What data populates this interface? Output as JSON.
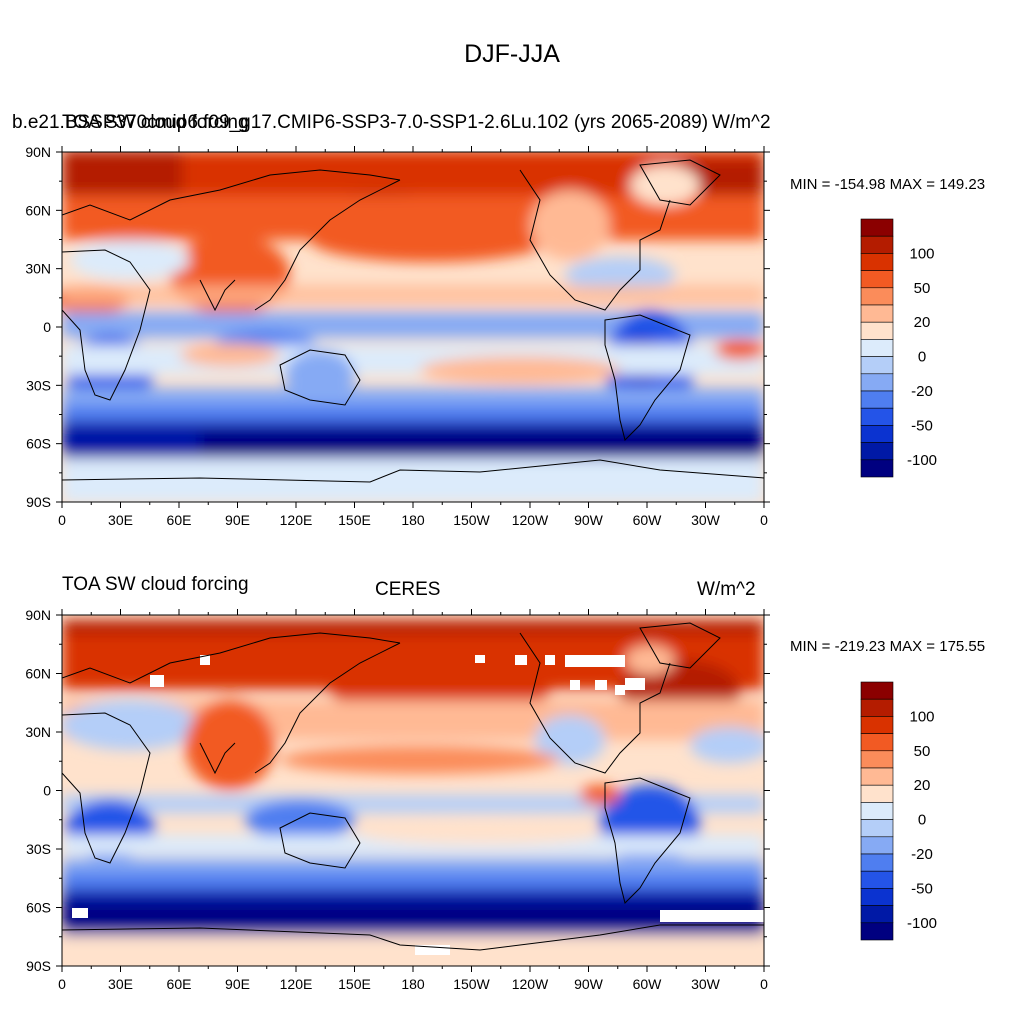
{
  "title": "DJF-JJA",
  "lon_ticks": [
    "0",
    "30E",
    "60E",
    "90E",
    "120E",
    "150E",
    "180",
    "150W",
    "120W",
    "90W",
    "60W",
    "30W",
    "0"
  ],
  "lat_ticks": [
    "90N",
    "60N",
    "30N",
    "0",
    "30S",
    "60S",
    "90S"
  ],
  "colorbar_labels": [
    "100",
    "50",
    "20",
    "0",
    "-20",
    "-50",
    "-100"
  ],
  "colorbar_colors": [
    "#8b0000",
    "#b41c00",
    "#d93200",
    "#f25a23",
    "#fb8c5a",
    "#ffb994",
    "#ffe2cc",
    "#dcebfb",
    "#b4cef8",
    "#86aaf4",
    "#4f7ef0",
    "#2454e8",
    "#0b33d0",
    "#0019a6",
    "#000080"
  ],
  "panels": [
    {
      "left_label": "b.e21.BSSP370cmip6.f09_g17.CMIP6-SSP3-7.0-SSP1-2.6Lu.102 (yrs 2065-2089)",
      "overlap_label": "TOA SW cloud forcing",
      "center_label": "",
      "right_label": "W/m^2",
      "minmax": "MIN = -154.98 MAX = 149.23"
    },
    {
      "left_label": "TOA SW cloud forcing",
      "center_label": "CERES",
      "right_label": "W/m^2",
      "minmax": "MIN = -219.23 MAX = 175.55"
    }
  ]
}
